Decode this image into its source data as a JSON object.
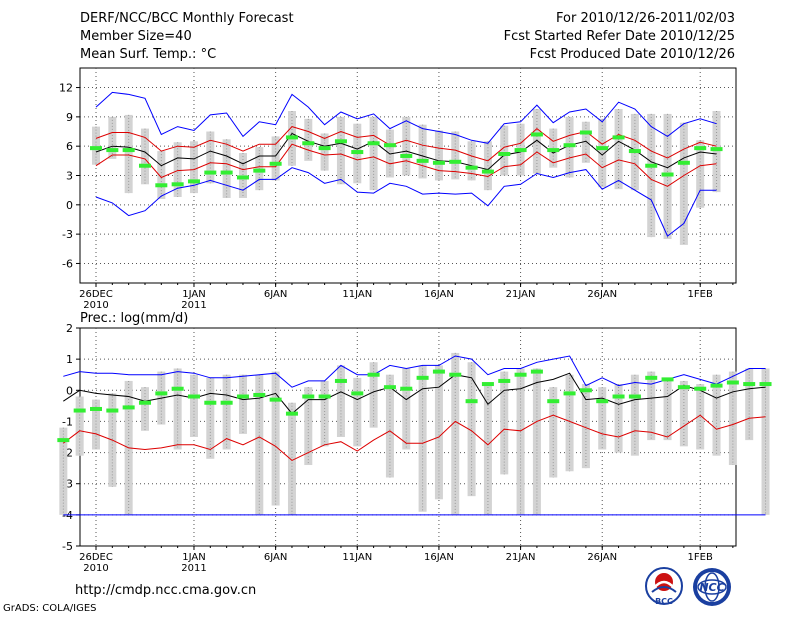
{
  "header": {
    "title": "DERF/NCC/BCC Monthly Forecast",
    "member_size": "Member Size=40",
    "variable": "Mean Surf. Temp.: °C",
    "fcst_for": "For 2010/12/26-2011/02/03",
    "fcst_started": "Fcst Started Refer Date 2010/12/25",
    "fcst_produced": "Fcst Produced Date 2010/12/26"
  },
  "footer": {
    "url": "http://cmdp.ncc.cma.gov.cn",
    "credit": "GrADS: COLA/IGES",
    "logo_bcc": "BCC",
    "logo_ncc": "NCC"
  },
  "colors": {
    "max": "#0000ff",
    "spread": "#dd0000",
    "mean": "#000000",
    "box": "#d3d3d3",
    "clim": "#33ee33"
  },
  "chart_data": [
    {
      "type": "line",
      "title": "Mean Surf. Temp.: °C",
      "x_unit": "day",
      "x_tick_labels": [
        "26DEC\n2010",
        "1JAN\n2011",
        "6JAN",
        "11JAN",
        "16JAN",
        "21JAN",
        "26JAN",
        "1FEB"
      ],
      "ylim": [
        -8,
        14
      ],
      "y_ticks": [
        -6,
        -3,
        0,
        3,
        6,
        9,
        12
      ],
      "grid": true,
      "series": [
        {
          "name": "max",
          "color": "#0000ff",
          "values": [
            10,
            11.5,
            11.3,
            10.9,
            7.2,
            8,
            7.6,
            9.2,
            9.4,
            7,
            8.5,
            8.2,
            11.3,
            10,
            8.2,
            9.5,
            8.8,
            9.3,
            7.8,
            8.6,
            7.8,
            7.5,
            7.2,
            6.6,
            6.3,
            8.3,
            8.5,
            10.2,
            8.4,
            9.5,
            9.8,
            8.5,
            10.5,
            9.8,
            8,
            7,
            8.3,
            8.8,
            8.3
          ]
        },
        {
          "name": "spread_upper",
          "color": "#dd0000",
          "values": [
            6.8,
            7.4,
            7.4,
            6.9,
            5.5,
            6,
            5.9,
            6.6,
            6.2,
            5.5,
            6.2,
            6.2,
            8,
            7.5,
            6.8,
            7.5,
            6.9,
            7.1,
            6.1,
            6.6,
            6.1,
            5.8,
            5.6,
            5,
            4.5,
            5.9,
            6.3,
            7.8,
            6.5,
            7.1,
            7.5,
            6.2,
            7.2,
            6.6,
            5.5,
            4.8,
            5.7,
            6.4,
            6
          ]
        },
        {
          "name": "mean",
          "color": "#000000",
          "values": [
            5.4,
            6,
            5.9,
            5.4,
            4,
            4.8,
            4.7,
            5.5,
            5,
            4.2,
            5,
            5,
            7.3,
            6.5,
            6,
            6.3,
            5.7,
            6.5,
            5.2,
            5.5,
            5,
            4.5,
            4.4,
            4,
            3.6,
            5.1,
            5.4,
            6.6,
            5.3,
            6.1,
            6.5,
            5.1,
            6.5,
            5.6,
            4.4,
            3.8,
            4.8,
            5.4,
            5.2
          ]
        },
        {
          "name": "spread_lower",
          "color": "#dd0000",
          "values": [
            4,
            5.1,
            5.1,
            4.7,
            2.8,
            3.5,
            3.6,
            4.3,
            4.2,
            3.6,
            3.9,
            3.9,
            6.2,
            5.6,
            5.1,
            5.2,
            4.6,
            4.9,
            4.2,
            4.5,
            4,
            3.5,
            3.4,
            3.2,
            2.9,
            3.9,
            4.1,
            5.4,
            4.3,
            4.8,
            5.2,
            3.8,
            4.6,
            4.2,
            2.6,
            1.9,
            3,
            4,
            4.2
          ]
        },
        {
          "name": "min",
          "color": "#0000ff",
          "values": [
            0.8,
            0.2,
            -1.1,
            -0.6,
            0.9,
            1.7,
            2,
            2.5,
            2,
            1.5,
            2.6,
            2.6,
            3.8,
            3.3,
            2.2,
            2.6,
            1.3,
            1.2,
            2.2,
            1.9,
            1.1,
            1.2,
            1.1,
            1.2,
            -0.1,
            1.9,
            2.1,
            3.2,
            2.8,
            3.3,
            3.6,
            1.6,
            2.5,
            1.5,
            0.5,
            -3.2,
            -1.9,
            1.5,
            1.5
          ]
        },
        {
          "name": "clim",
          "color": "#33ee33",
          "values": [
            5.8,
            5.6,
            5.6,
            4,
            2,
            2.1,
            2.4,
            3.3,
            3.3,
            2.8,
            3.5,
            4.2,
            6.9,
            6.3,
            5.8,
            6.5,
            5.4,
            6.3,
            6.1,
            5,
            4.5,
            4.3,
            4.4,
            3.8,
            3.4,
            5.2,
            5.6,
            7.2,
            5.6,
            6.1,
            7.4,
            5.8,
            6.9,
            5.5,
            4,
            3.1,
            4.3,
            5.8,
            5.7
          ]
        }
      ],
      "boxes": [
        [
          4.1,
          8,
          5.8
        ],
        [
          4.7,
          9,
          5.3
        ],
        [
          1.2,
          9.2,
          5.5
        ],
        [
          2.1,
          7.8,
          4.7
        ],
        [
          0.6,
          5.5,
          3.7
        ],
        [
          0.8,
          6.4,
          4
        ],
        [
          1.2,
          6.5,
          4.5
        ],
        [
          2.2,
          7.5,
          5.3
        ],
        [
          0.7,
          6.7,
          4.2
        ],
        [
          0.7,
          5.3,
          2.8
        ],
        [
          1.5,
          5.9,
          3.7
        ],
        [
          2.5,
          7,
          5
        ],
        [
          4,
          9.6,
          7.7
        ],
        [
          4.5,
          8.8,
          6.2
        ],
        [
          3.5,
          7.3,
          5.2
        ],
        [
          2.1,
          9,
          6.4
        ],
        [
          2.2,
          8.3,
          4.9
        ],
        [
          1.5,
          9,
          4.6
        ],
        [
          2.8,
          7.7,
          5.6
        ],
        [
          3,
          9,
          5.3
        ],
        [
          2.7,
          8.2,
          4.9
        ],
        [
          2.5,
          7.6,
          5.1
        ],
        [
          2.6,
          7.5,
          4.7
        ],
        [
          2.5,
          6.5,
          4.6
        ],
        [
          1.5,
          6.5,
          3.4
        ],
        [
          3,
          8.1,
          5.2
        ],
        [
          3,
          8.3,
          5.5
        ],
        [
          3.2,
          9.8,
          7.3
        ],
        [
          3.8,
          7.8,
          5.5
        ],
        [
          2.8,
          9,
          6
        ],
        [
          4.3,
          8.5,
          6.2
        ],
        [
          1.8,
          8.8,
          4.5
        ],
        [
          1.6,
          9.8,
          6.3
        ],
        [
          1.5,
          9.3,
          5.3
        ],
        [
          -3.3,
          9.3,
          3.7
        ],
        [
          -3.5,
          9.3,
          1.1
        ],
        [
          -4.1,
          8.4,
          2.5
        ],
        [
          -0.3,
          6.6,
          4.3
        ],
        [
          1.3,
          9.6,
          4.2
        ]
      ]
    },
    {
      "type": "line",
      "title": "Prec.: log(mm/d)",
      "x_unit": "day",
      "x_tick_labels": [
        "26DEC\n2010",
        "1JAN\n2011",
        "6JAN",
        "11JAN",
        "16JAN",
        "21JAN",
        "26JAN",
        "1FEB"
      ],
      "ylim": [
        -5,
        2
      ],
      "y_ticks": [
        -5,
        -4,
        -3,
        -2,
        -1,
        0,
        1,
        2
      ],
      "grid": true,
      "series": [
        {
          "name": "max",
          "color": "#0000ff",
          "values": [
            0.45,
            0.6,
            0.55,
            0.55,
            0.5,
            0.5,
            0.5,
            0.6,
            0.55,
            0.4,
            0.4,
            0.45,
            0.5,
            0.55,
            0.1,
            0.3,
            0.3,
            0.8,
            0.5,
            0.5,
            0.8,
            0.7,
            0.8,
            0.8,
            1.1,
            1,
            0.5,
            0.7,
            0.7,
            0.9,
            1,
            1.1,
            0.15,
            0.4,
            0.15,
            0.25,
            0.2,
            0.35,
            0.5,
            0.35,
            0.2,
            0.45,
            0.7,
            0.7
          ]
        },
        {
          "name": "mean",
          "color": "#000000",
          "values": [
            -0.35,
            0,
            -0.1,
            -0.15,
            -0.2,
            -0.35,
            -0.25,
            -0.15,
            -0.25,
            -0.1,
            -0.15,
            -0.3,
            -0.25,
            -0.1,
            -0.75,
            -0.3,
            -0.3,
            -0.05,
            -0.3,
            -0.05,
            0.1,
            -0.3,
            0.05,
            0.1,
            0.5,
            0.4,
            -0.45,
            0,
            0.05,
            0.25,
            0.35,
            0.55,
            -0.3,
            -0.25,
            -0.45,
            -0.3,
            -0.25,
            -0.2,
            0.15,
            0,
            -0.25,
            -0.05,
            0.05,
            0.1
          ]
        },
        {
          "name": "spread_lower",
          "color": "#dd0000",
          "values": [
            -1.7,
            -1.3,
            -1.4,
            -1.6,
            -1.85,
            -1.9,
            -1.85,
            -1.75,
            -1.75,
            -1.9,
            -1.55,
            -1.75,
            -1.5,
            -1.8,
            -2.25,
            -2,
            -1.75,
            -1.65,
            -1.95,
            -1.6,
            -1.3,
            -1.7,
            -1.7,
            -1.5,
            -1,
            -1.3,
            -1.75,
            -1.25,
            -1.3,
            -1,
            -0.8,
            -1,
            -1.2,
            -1.4,
            -1.5,
            -1.3,
            -1.35,
            -1.5,
            -1.15,
            -0.8,
            -1.25,
            -1.1,
            -0.9,
            -0.85
          ]
        },
        {
          "name": "clim",
          "color": "#33ee33",
          "values": [
            -1.6,
            -0.65,
            -0.6,
            -0.65,
            -0.55,
            -0.4,
            -0.1,
            0.05,
            -0.2,
            -0.4,
            -0.4,
            -0.2,
            -0.15,
            -0.3,
            -0.75,
            -0.2,
            -0.2,
            0.3,
            -0.1,
            0.5,
            0.1,
            0.05,
            0.4,
            0.6,
            0.5,
            -0.35,
            0.2,
            0.3,
            0.5,
            0.6,
            -0.35,
            -0.1,
            0,
            -0.35,
            -0.2,
            -0.2,
            0.4,
            0.35,
            0.1,
            0.05,
            0.15,
            0.25,
            0.2,
            0.2
          ]
        },
        {
          "name": "floor",
          "color": "#0000ff",
          "values": [
            -4,
            -4,
            -4,
            -4,
            -4,
            -4,
            -4,
            -4,
            -4,
            -4,
            -4,
            -4,
            -4,
            -4,
            -4,
            -4,
            -4,
            -4,
            -4,
            -4,
            -4,
            -4,
            -4,
            -4,
            -4,
            -4,
            -4,
            -4,
            -4,
            -4,
            -4,
            -4,
            -4,
            -4,
            -4,
            -4,
            -4,
            -4,
            -4,
            -4,
            -4,
            -4,
            -4,
            -4
          ]
        }
      ],
      "boxes": [
        [
          -4,
          -1.2,
          -1.6
        ],
        [
          -2.1,
          -0.2,
          -0.65
        ],
        [
          -1.9,
          -0.3,
          -0.6
        ],
        [
          -3.1,
          -0.1,
          -0.65
        ],
        [
          -4,
          0.3,
          -0.55
        ],
        [
          -1.3,
          0.1,
          -0.4
        ],
        [
          -1.1,
          0.6,
          -0.1
        ],
        [
          -1.9,
          0.7,
          0.05
        ],
        [
          -1.5,
          0.5,
          -0.2
        ],
        [
          -2.2,
          0.4,
          -0.4
        ],
        [
          -1.9,
          0.5,
          -0.4
        ],
        [
          -1.4,
          0.5,
          -0.2
        ],
        [
          -4,
          0.5,
          -0.15
        ],
        [
          -3.7,
          0.6,
          -0.3
        ],
        [
          -4,
          -0.4,
          -0.75
        ],
        [
          -2.4,
          0.1,
          -0.2
        ],
        [
          -1.8,
          0.3,
          -0.2
        ],
        [
          -1.5,
          0.8,
          0.3
        ],
        [
          -1.8,
          0.4,
          -0.1
        ],
        [
          -1.2,
          0.9,
          0.5
        ],
        [
          -2.8,
          0.5,
          0.1
        ],
        [
          -1.9,
          0.7,
          0.05
        ],
        [
          -3.9,
          0.8,
          0.4
        ],
        [
          -3.5,
          0.8,
          0.6
        ],
        [
          -4,
          1.2,
          0.5
        ],
        [
          -3.4,
          0.9,
          -0.35
        ],
        [
          -4,
          0.2,
          0.2
        ],
        [
          -2.7,
          0.6,
          0.3
        ],
        [
          -4,
          0.7,
          0.5
        ],
        [
          -4,
          0.7,
          0.6
        ],
        [
          -2.8,
          0.1,
          -0.35
        ],
        [
          -2.6,
          0.5,
          -0.1
        ],
        [
          -2.5,
          0.2,
          0
        ],
        [
          -1.9,
          0.1,
          -0.35
        ],
        [
          -2,
          0.2,
          -0.2
        ],
        [
          -2.1,
          0.5,
          -0.2
        ],
        [
          -1.6,
          0.6,
          0.4
        ],
        [
          -1.6,
          0.4,
          0.35
        ],
        [
          -1.8,
          0.3,
          0.1
        ],
        [
          -1.9,
          0.2,
          0.05
        ],
        [
          -2.1,
          0.5,
          0.15
        ],
        [
          -2.4,
          0.6,
          0.25
        ],
        [
          -1.6,
          0.7,
          0.2
        ],
        [
          -4,
          0.7,
          0.2
        ]
      ]
    }
  ]
}
